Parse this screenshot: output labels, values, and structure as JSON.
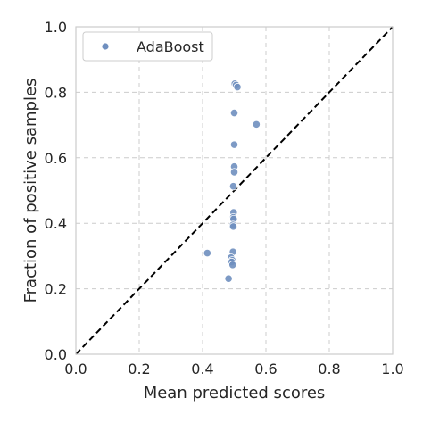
{
  "chart_data": {
    "type": "scatter",
    "xlabel": "Mean predicted scores",
    "ylabel": "Fraction of positive samples",
    "xlim": [
      0.0,
      1.0
    ],
    "ylim": [
      0.0,
      1.0
    ],
    "xticks": [
      "0.0",
      "0.2",
      "0.4",
      "0.6",
      "0.8",
      "1.0"
    ],
    "yticks": [
      "0.0",
      "0.2",
      "0.4",
      "0.6",
      "0.8",
      "1.0"
    ],
    "grid": true,
    "grid_style": "dashed",
    "legend_position": "top-left",
    "reference_line": {
      "style": "dashed",
      "color": "#000000",
      "from": [
        0,
        0
      ],
      "to": [
        1,
        1
      ]
    },
    "series": [
      {
        "name": "AdaBoost",
        "color": "#6f8fbf",
        "points": [
          {
            "x": 0.502,
            "y": 0.826
          },
          {
            "x": 0.506,
            "y": 0.822
          },
          {
            "x": 0.51,
            "y": 0.816
          },
          {
            "x": 0.5,
            "y": 0.737
          },
          {
            "x": 0.57,
            "y": 0.702
          },
          {
            "x": 0.5,
            "y": 0.64
          },
          {
            "x": 0.5,
            "y": 0.573
          },
          {
            "x": 0.5,
            "y": 0.556
          },
          {
            "x": 0.497,
            "y": 0.513
          },
          {
            "x": 0.498,
            "y": 0.433
          },
          {
            "x": 0.497,
            "y": 0.418
          },
          {
            "x": 0.498,
            "y": 0.413
          },
          {
            "x": 0.496,
            "y": 0.395
          },
          {
            "x": 0.497,
            "y": 0.39
          },
          {
            "x": 0.496,
            "y": 0.313
          },
          {
            "x": 0.415,
            "y": 0.309
          },
          {
            "x": 0.49,
            "y": 0.295
          },
          {
            "x": 0.494,
            "y": 0.287
          },
          {
            "x": 0.492,
            "y": 0.282
          },
          {
            "x": 0.495,
            "y": 0.273
          },
          {
            "x": 0.482,
            "y": 0.231
          }
        ]
      }
    ]
  }
}
